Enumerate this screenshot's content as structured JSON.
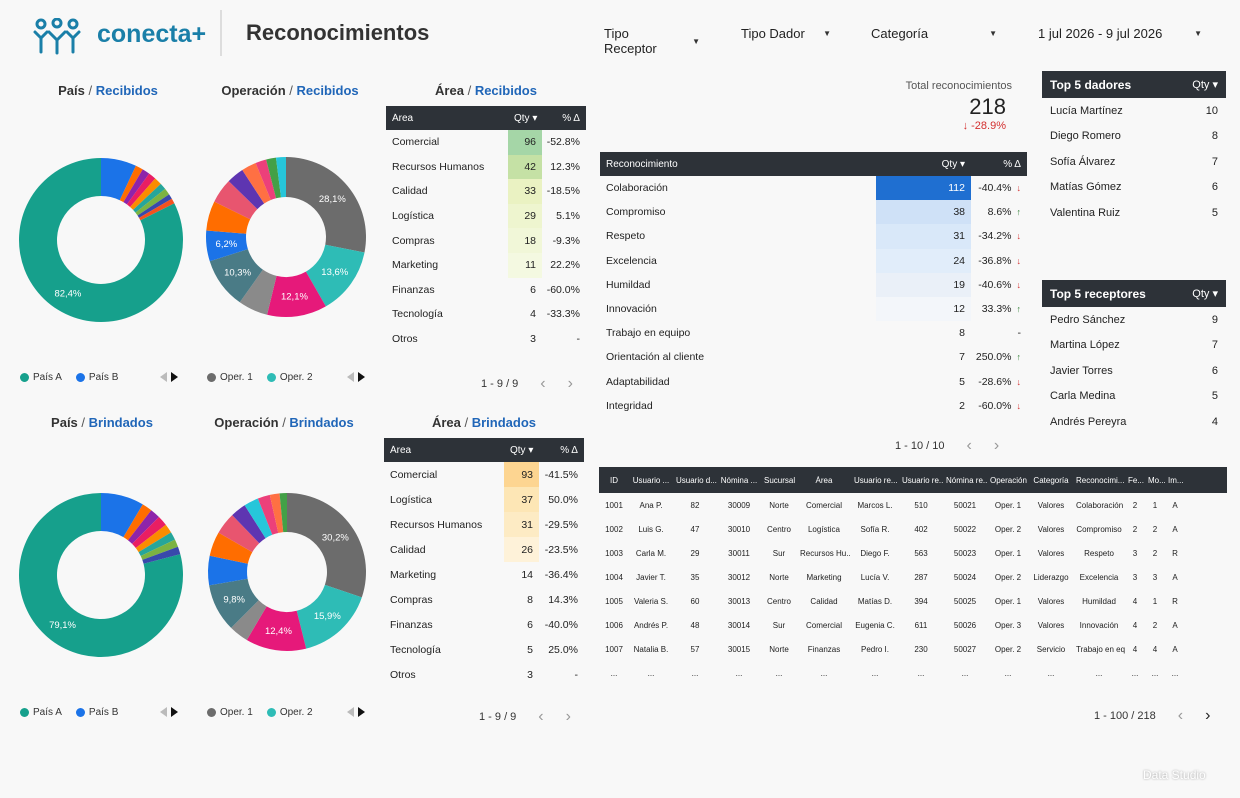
{
  "header": {
    "brand": "conecta+",
    "title": "Reconocimientos",
    "filters": [
      {
        "label": "Tipo Receptor"
      },
      {
        "label": "Tipo Dador"
      },
      {
        "label": "Categoría"
      },
      {
        "label": "1 jul 2026 - 9 jul 2026"
      }
    ]
  },
  "colors": {
    "pais_a": "#16a08c",
    "pais_b": "#1b73e8",
    "oper1": "#6c6c6c",
    "oper2": "#2ebcb6"
  },
  "chart_data": [
    {
      "type": "pie",
      "id": "pais_recibidos",
      "title_a": "País",
      "title_b": "Recibidos",
      "slices": [
        {
          "label": "País A",
          "value": 82.4,
          "color": "#16a08c",
          "show": true
        },
        {
          "label": "País B",
          "value": 7.0,
          "color": "#1b73e8"
        },
        {
          "label": "",
          "value": 1.5,
          "color": "#ff6d00"
        },
        {
          "label": "",
          "value": 1.5,
          "color": "#8e24aa"
        },
        {
          "label": "",
          "value": 1.5,
          "color": "#e91e63"
        },
        {
          "label": "",
          "value": 1.5,
          "color": "#fb8c00"
        },
        {
          "label": "",
          "value": 1.3,
          "color": "#26a69a"
        },
        {
          "label": "",
          "value": 1.3,
          "color": "#7cb342"
        },
        {
          "label": "",
          "value": 1.0,
          "color": "#3949ab"
        },
        {
          "label": "",
          "value": 1.0,
          "color": "#f4511e"
        }
      ],
      "legend": [
        "País A",
        "País B"
      ]
    },
    {
      "type": "pie",
      "id": "operacion_recibidos",
      "title_a": "Operación",
      "title_b": "Recibidos",
      "slices": [
        {
          "label": "Oper. 1",
          "value": 28.1,
          "color": "#6c6c6c",
          "show": true
        },
        {
          "label": "Oper. 2",
          "value": 13.6,
          "color": "#2ebcb6",
          "show": true
        },
        {
          "label": "",
          "value": 12.1,
          "color": "#e6197a",
          "show": true
        },
        {
          "label": "",
          "value": 6.0,
          "color": "#8a8a8a"
        },
        {
          "label": "",
          "value": 10.3,
          "color": "#4a7b86",
          "show": true
        },
        {
          "label": "",
          "value": 6.2,
          "color": "#1b73e8",
          "show": true
        },
        {
          "label": "",
          "value": 6.0,
          "color": "#ff6d00"
        },
        {
          "label": "",
          "value": 5.0,
          "color": "#e8556f"
        },
        {
          "label": "",
          "value": 3.5,
          "color": "#5e35b1"
        },
        {
          "label": "",
          "value": 3.0,
          "color": "#ff7043"
        },
        {
          "label": "",
          "value": 2.2,
          "color": "#ec407a"
        },
        {
          "label": "",
          "value": 2.0,
          "color": "#43a047"
        },
        {
          "label": "",
          "value": 2.0,
          "color": "#26c6da"
        }
      ],
      "legend": [
        "Oper. 1",
        "Oper. 2"
      ]
    },
    {
      "type": "pie",
      "id": "pais_brindados",
      "title_a": "País",
      "title_b": "Brindados",
      "slices": [
        {
          "label": "País A",
          "value": 79.1,
          "color": "#16a08c",
          "show": true
        },
        {
          "label": "País B",
          "value": 8.5,
          "color": "#1b73e8"
        },
        {
          "label": "",
          "value": 2.0,
          "color": "#ff6d00"
        },
        {
          "label": "",
          "value": 2.0,
          "color": "#8e24aa"
        },
        {
          "label": "",
          "value": 2.0,
          "color": "#e91e63"
        },
        {
          "label": "",
          "value": 1.8,
          "color": "#fb8c00"
        },
        {
          "label": "",
          "value": 1.6,
          "color": "#26a69a"
        },
        {
          "label": "",
          "value": 1.5,
          "color": "#7cb342"
        },
        {
          "label": "",
          "value": 1.5,
          "color": "#3949ab"
        }
      ],
      "legend": [
        "País A",
        "País B"
      ]
    },
    {
      "type": "pie",
      "id": "operacion_brindados",
      "title_a": "Operación",
      "title_b": "Brindados",
      "slices": [
        {
          "label": "Oper. 1",
          "value": 30.2,
          "color": "#6c6c6c",
          "show": true
        },
        {
          "label": "Oper. 2",
          "value": 15.9,
          "color": "#2ebcb6",
          "show": true
        },
        {
          "label": "",
          "value": 12.4,
          "color": "#e6197a",
          "show": true
        },
        {
          "label": "",
          "value": 4.0,
          "color": "#8a8a8a"
        },
        {
          "label": "",
          "value": 9.8,
          "color": "#4a7b86",
          "show": true
        },
        {
          "label": "",
          "value": 6.0,
          "color": "#1b73e8"
        },
        {
          "label": "",
          "value": 5.0,
          "color": "#ff6d00"
        },
        {
          "label": "",
          "value": 4.5,
          "color": "#e8556f"
        },
        {
          "label": "",
          "value": 3.2,
          "color": "#5e35b1"
        },
        {
          "label": "",
          "value": 3.0,
          "color": "#26c6da"
        },
        {
          "label": "",
          "value": 2.5,
          "color": "#ec407a"
        },
        {
          "label": "",
          "value": 2.0,
          "color": "#ff7043"
        },
        {
          "label": "",
          "value": 1.5,
          "color": "#43a047"
        }
      ],
      "legend": [
        "Oper. 1",
        "Oper. 2"
      ]
    },
    {
      "type": "table",
      "id": "area_recibidos",
      "title_a": "Área",
      "title_b": "Recibidos",
      "columns": [
        "Área",
        "Qty",
        "% Δ"
      ],
      "rows": [
        [
          "Comercial",
          96,
          "-52.8%"
        ],
        [
          "Recursos Humanos",
          42,
          "12.3%"
        ],
        [
          "Calidad",
          33,
          "-18.5%"
        ],
        [
          "Logística",
          29,
          "5.1%"
        ],
        [
          "Compras",
          18,
          "-9.3%"
        ],
        [
          "Marketing",
          11,
          "22.2%"
        ],
        [
          "Finanzas",
          6,
          "-60.0%"
        ],
        [
          "Tecnología",
          4,
          "-33.3%"
        ],
        [
          "Otros",
          3,
          "-"
        ]
      ],
      "heat": [
        "#a5d6a7",
        "#c5e1a5",
        "#eaf2c2",
        "#eef5cf",
        "#f1f7d8",
        "#f4f9e1",
        "",
        "",
        ""
      ],
      "pager": "1 - 9 / 9"
    },
    {
      "type": "table",
      "id": "area_brindados",
      "title_a": "Área",
      "title_b": "Brindados",
      "columns": [
        "Área",
        "Qty",
        "% Δ"
      ],
      "rows": [
        [
          "Comercial",
          93,
          "-41.5%"
        ],
        [
          "Logística",
          37,
          "50.0%"
        ],
        [
          "Recursos Humanos",
          31,
          "-29.5%"
        ],
        [
          "Calidad",
          26,
          "-23.5%"
        ],
        [
          "Marketing",
          14,
          "-36.4%"
        ],
        [
          "Compras",
          8,
          "14.3%"
        ],
        [
          "Finanzas",
          6,
          "-40.0%"
        ],
        [
          "Tecnología",
          5,
          "25.0%"
        ],
        [
          "Otros",
          3,
          "-"
        ]
      ],
      "heat": [
        "#fdd591",
        "#fde6b5",
        "#fdebc4",
        "#fef2d9",
        "",
        "",
        "",
        "",
        ""
      ],
      "pager": "1 - 9 / 9"
    },
    {
      "type": "table",
      "id": "reconocimiento",
      "columns": [
        "Reconocimiento",
        "Qty",
        "% Δ"
      ],
      "rows": [
        [
          "Colaboración",
          112,
          "-40.4%",
          "down"
        ],
        [
          "Compromiso",
          38,
          "8.6%",
          "up"
        ],
        [
          "Respeto",
          31,
          "-34.2%",
          "down"
        ],
        [
          "Excelencia",
          24,
          "-36.8%",
          "down"
        ],
        [
          "Humildad",
          19,
          "-40.6%",
          "down"
        ],
        [
          "Innovación",
          12,
          "33.3%",
          "up"
        ],
        [
          "Trabajo en equipo",
          8,
          "-",
          ""
        ],
        [
          "Orientación al cliente",
          7,
          "250.0%",
          "up"
        ],
        [
          "Adaptabilidad",
          5,
          "-28.6%",
          "down"
        ],
        [
          "Integridad",
          2,
          "-60.0%",
          "down"
        ]
      ],
      "heat": [
        "#1f6fd1",
        "#cfe1f7",
        "#d9e8f9",
        "#e1edfa",
        "#eaf0f8",
        "#f3f6fa",
        "",
        "",
        "",
        ""
      ],
      "pager": "1 - 10 / 10"
    }
  ],
  "kpi": {
    "label": "Total reconocimientos",
    "value": "218",
    "delta": "↓ -28.9%"
  },
  "top_dadores": {
    "title": "Top 5 dadores",
    "col": "Qty",
    "rows": [
      [
        "Lucía Martínez",
        10
      ],
      [
        "Diego Romero",
        8
      ],
      [
        "Sofía Álvarez",
        7
      ],
      [
        "Matías Gómez",
        6
      ],
      [
        "Valentina Ruiz",
        5
      ]
    ]
  },
  "top_receptores": {
    "title": "Top 5 receptores",
    "col": "Qty",
    "rows": [
      [
        "Pedro Sánchez",
        9
      ],
      [
        "Martina López",
        7
      ],
      [
        "Javier Torres",
        6
      ],
      [
        "Carla Medina",
        5
      ],
      [
        "Andrés Pereyra",
        4
      ]
    ]
  },
  "detail_table": {
    "columns": [
      "ID",
      "Usuario ...",
      "Usuario d...",
      "Nómina ...",
      "Sucursal",
      "Área",
      "Usuario re...",
      "Usuario re...",
      "Nómina re...",
      "Operación",
      "Categoría",
      "Reconocimi...",
      "Fe...",
      "Mo...",
      "Im..."
    ],
    "rows": [
      [
        "1001",
        "Ana P.",
        "82",
        "30009",
        "Norte",
        "Comercial",
        "Marcos L.",
        "510",
        "50021",
        "Oper. 1",
        "Valores",
        "Colaboración",
        "2",
        "1",
        "A"
      ],
      [
        "1002",
        "Luis G.",
        "47",
        "30010",
        "Centro",
        "Logística",
        "Sofía R.",
        "402",
        "50022",
        "Oper. 2",
        "Valores",
        "Compromiso",
        "2",
        "2",
        "A"
      ],
      [
        "1003",
        "Carla M.",
        "29",
        "30011",
        "Sur",
        "Recursos Hu...",
        "Diego F.",
        "563",
        "50023",
        "Oper. 1",
        "Valores",
        "Respeto",
        "3",
        "2",
        "R"
      ],
      [
        "1004",
        "Javier T.",
        "35",
        "30012",
        "Norte",
        "Marketing",
        "Lucía V.",
        "287",
        "50024",
        "Oper. 2",
        "Liderazgo",
        "Excelencia",
        "3",
        "3",
        "A"
      ],
      [
        "1005",
        "Valeria S.",
        "60",
        "30013",
        "Centro",
        "Calidad",
        "Matías D.",
        "394",
        "50025",
        "Oper. 1",
        "Valores",
        "Humildad",
        "4",
        "1",
        "R"
      ],
      [
        "1006",
        "Andrés P.",
        "48",
        "30014",
        "Sur",
        "Comercial",
        "Eugenia C.",
        "611",
        "50026",
        "Oper. 3",
        "Valores",
        "Innovación",
        "4",
        "2",
        "A"
      ],
      [
        "1007",
        "Natalia B.",
        "57",
        "30015",
        "Norte",
        "Finanzas",
        "Pedro I.",
        "230",
        "50027",
        "Oper. 2",
        "Servicio",
        "Trabajo en eq...",
        "4",
        "4",
        "A"
      ],
      [
        "...",
        "...",
        "...",
        "...",
        "...",
        "...",
        "...",
        "...",
        "...",
        "...",
        "...",
        "...",
        "...",
        "...",
        "..."
      ]
    ],
    "pager": "1 - 100 / 218"
  },
  "footer": "Data Studio"
}
